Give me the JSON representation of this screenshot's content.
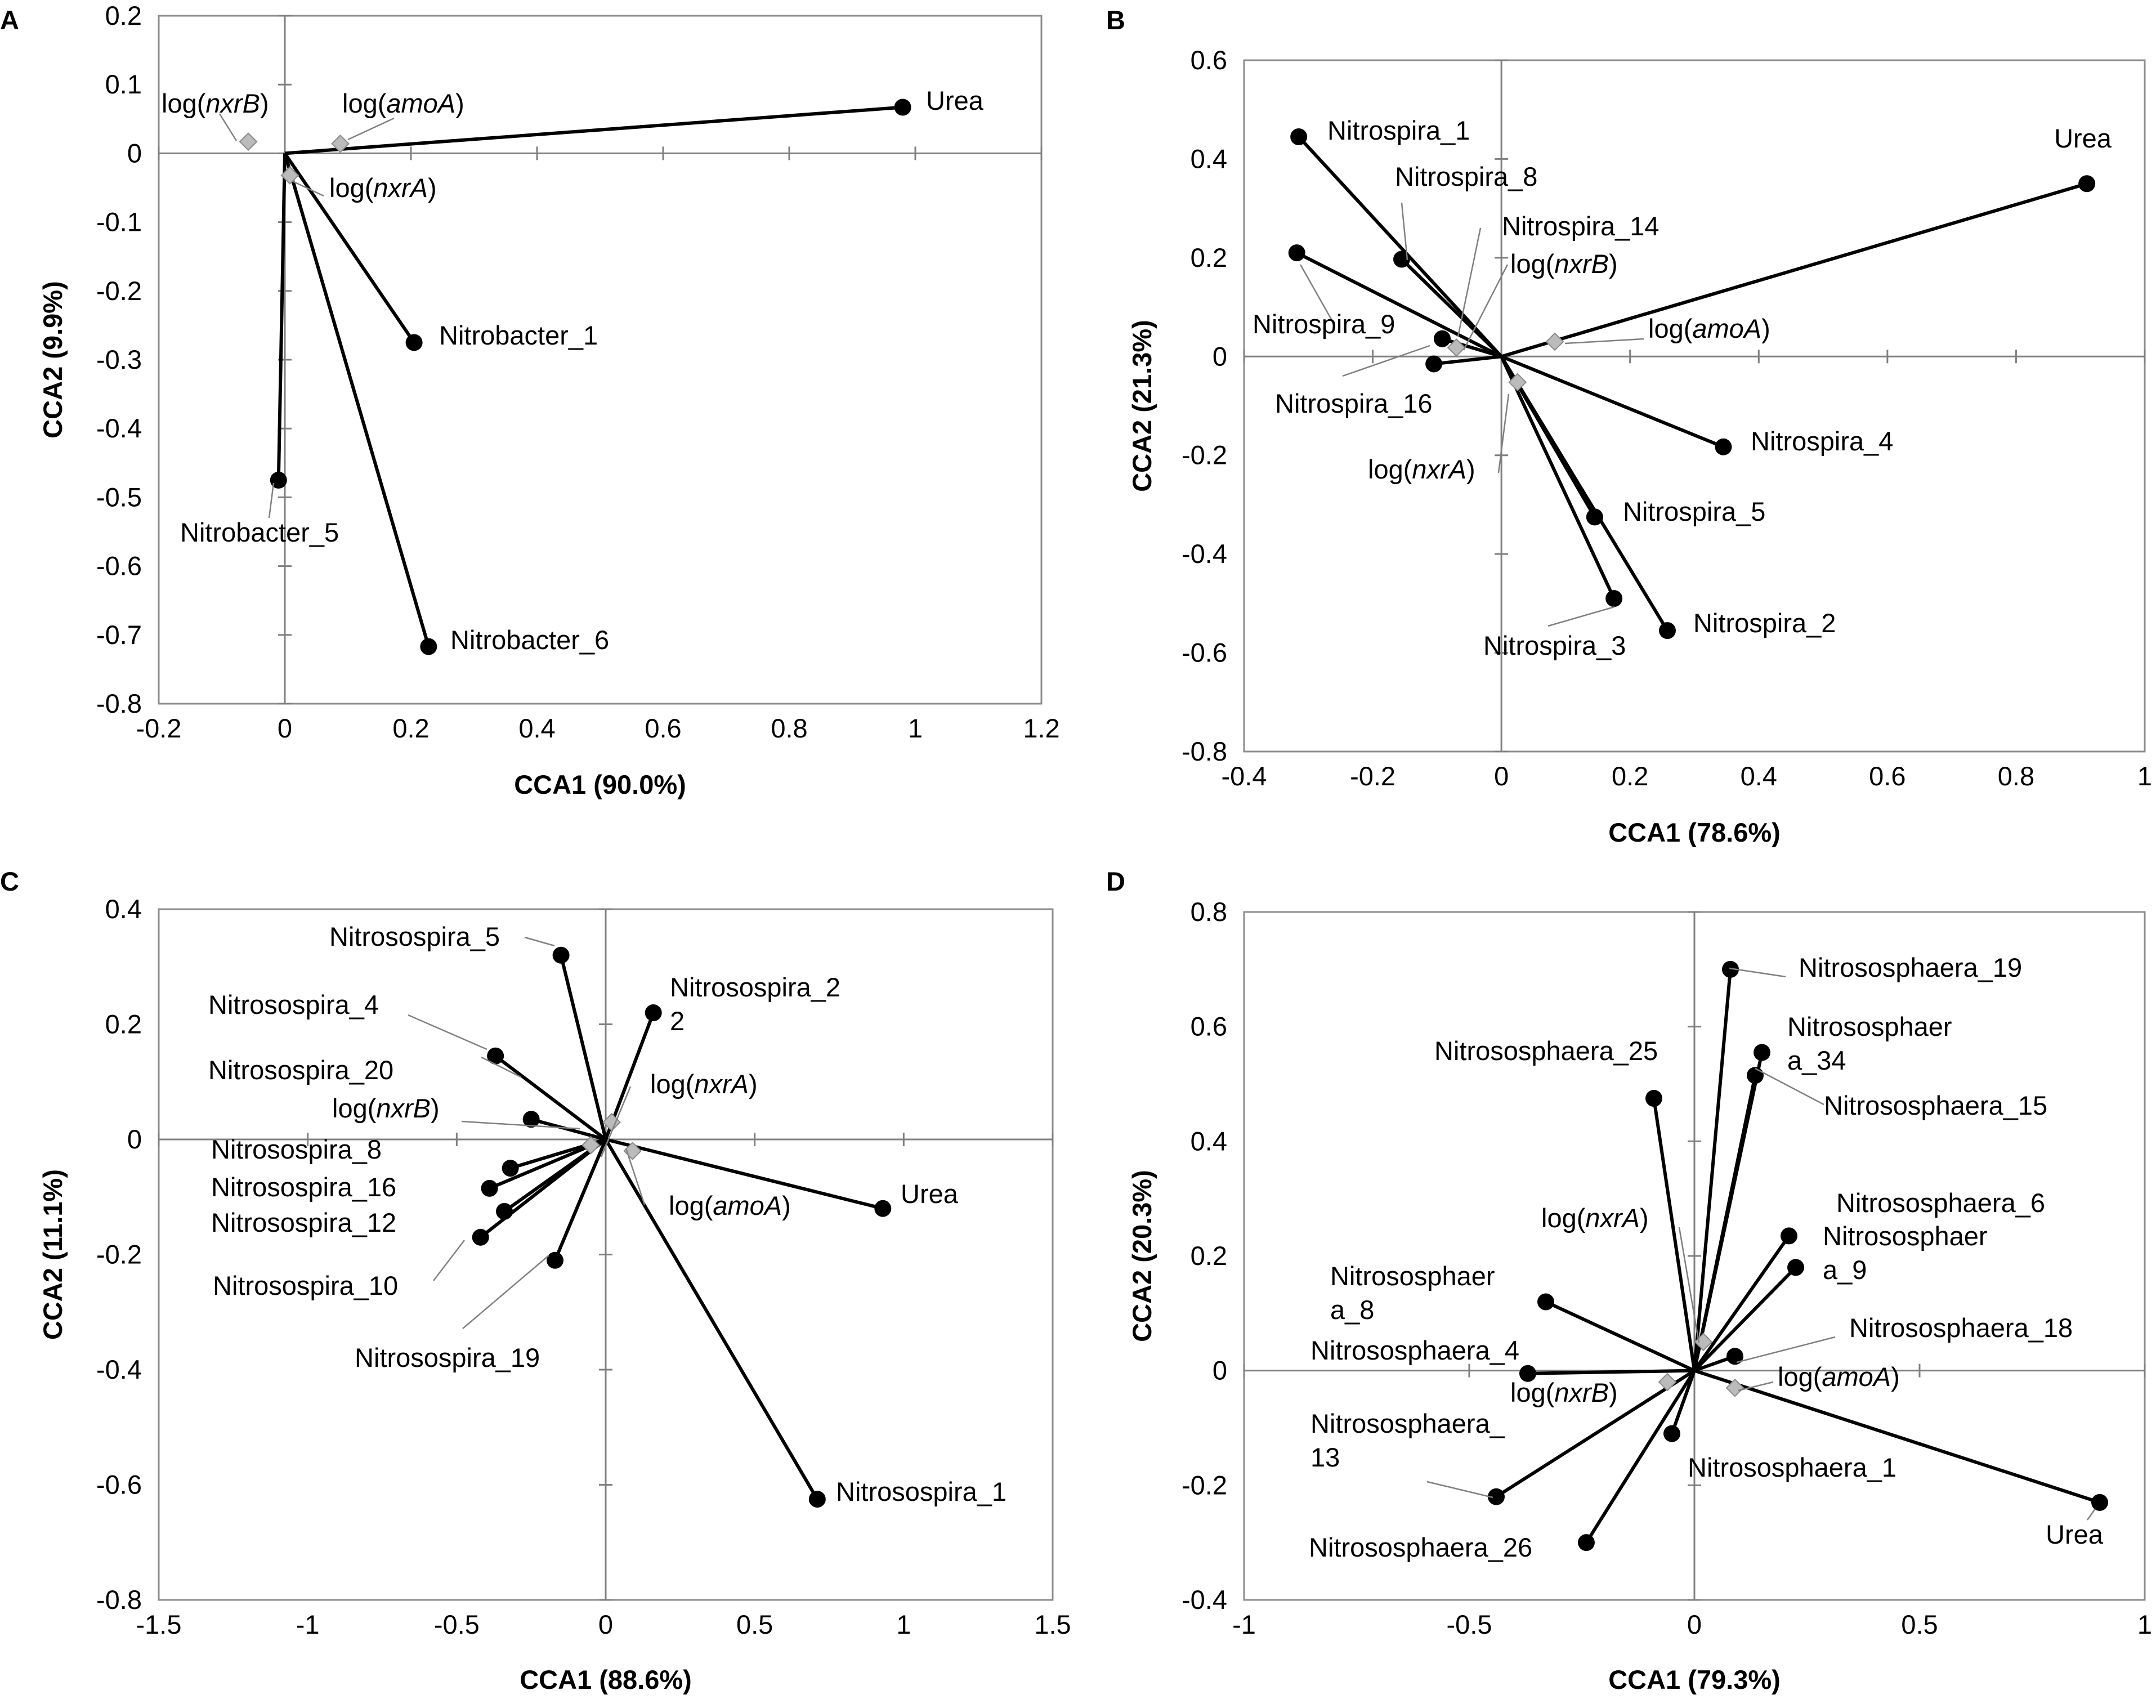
{
  "figure": {
    "type": "multi-panel CCA ordination plots"
  },
  "colors": {
    "species": "#000000",
    "env_marker": "#bbbbbb",
    "env_marker_stroke": "#8a8a8a",
    "axis": "#7f7f7f",
    "leader": "#7f7f7f",
    "frame": "#8c8c8c"
  },
  "chart_data": [
    {
      "type": "scatter",
      "panel_label": "A",
      "title": "",
      "xlabel": "CCA1 (90.0%)",
      "ylabel": "CCA2 (9.9%)",
      "xlim": [
        -0.2,
        1.2
      ],
      "ylim": [
        -0.8,
        0.2
      ],
      "xticks": [
        -0.2,
        0,
        0.2,
        0.4,
        0.6,
        0.8,
        1,
        1.2
      ],
      "yticks": [
        -0.8,
        -0.7,
        -0.6,
        -0.5,
        -0.4,
        -0.3,
        -0.2,
        -0.1,
        0,
        0.1,
        0.2
      ],
      "xtick_labels": [
        "-0.2",
        "0",
        "0.2",
        "0.4",
        "0.6",
        "0.8",
        "1",
        "1.2"
      ],
      "ytick_labels": [
        "-0.8",
        "-0.7",
        "-0.6",
        "-0.5",
        "-0.4",
        "-0.3",
        "-0.2",
        "-0.1",
        "0",
        "0.1",
        "0.2"
      ],
      "series": [
        {
          "name": "Urea",
          "kind": "species",
          "x": 0.98,
          "y": 0.067
        },
        {
          "name": "Nitrobacter_1",
          "kind": "species",
          "x": 0.205,
          "y": -0.275
        },
        {
          "name": "Nitrobacter_5",
          "kind": "species",
          "x": -0.01,
          "y": -0.475
        },
        {
          "name": "Nitrobacter_6",
          "kind": "species",
          "x": 0.228,
          "y": -0.717
        },
        {
          "name": "log(nxrB)",
          "kind": "env",
          "x": -0.058,
          "y": 0.017
        },
        {
          "name": "log(amoA)",
          "kind": "env",
          "x": 0.088,
          "y": 0.014
        },
        {
          "name": "log(nxrA)",
          "kind": "env",
          "x": 0.008,
          "y": -0.032
        }
      ]
    },
    {
      "type": "scatter",
      "panel_label": "B",
      "title": "",
      "xlabel": "CCA1 (78.6%)",
      "ylabel": "CCA2 (21.3%)",
      "xlim": [
        -0.4,
        1
      ],
      "ylim": [
        -0.8,
        0.6
      ],
      "xticks": [
        -0.4,
        -0.2,
        0,
        0.2,
        0.4,
        0.6,
        0.8,
        1
      ],
      "yticks": [
        -0.8,
        -0.6,
        -0.4,
        -0.2,
        0,
        0.2,
        0.4,
        0.6
      ],
      "xtick_labels": [
        "-0.4",
        "-0.2",
        "0",
        "0.2",
        "0.4",
        "0.6",
        "0.8",
        "1"
      ],
      "ytick_labels": [
        "-0.8",
        "-0.6",
        "-0.4",
        "-0.2",
        "0",
        "0.2",
        "0.4",
        "0.6"
      ],
      "series": [
        {
          "name": "Urea",
          "kind": "species",
          "x": 0.91,
          "y": 0.35
        },
        {
          "name": "Nitrospira_1",
          "kind": "species",
          "x": -0.315,
          "y": 0.445
        },
        {
          "name": "Nitrospira_8",
          "kind": "species",
          "x": -0.155,
          "y": 0.197
        },
        {
          "name": "Nitrospira_14",
          "kind": "species",
          "x": -0.092,
          "y": 0.036
        },
        {
          "name": "Nitrospira_9",
          "kind": "species",
          "x": -0.318,
          "y": 0.21
        },
        {
          "name": "Nitrospira_16",
          "kind": "species",
          "x": -0.105,
          "y": -0.015
        },
        {
          "name": "Nitrospira_4",
          "kind": "species",
          "x": 0.345,
          "y": -0.183
        },
        {
          "name": "Nitrospira_5",
          "kind": "species",
          "x": 0.145,
          "y": -0.325
        },
        {
          "name": "Nitrospira_3",
          "kind": "species",
          "x": 0.175,
          "y": -0.49
        },
        {
          "name": "Nitrospira_2",
          "kind": "species",
          "x": 0.258,
          "y": -0.555
        },
        {
          "name": "log(nxrB)",
          "kind": "env",
          "x": -0.07,
          "y": 0.018
        },
        {
          "name": "log(amoA)",
          "kind": "env",
          "x": 0.083,
          "y": 0.03
        },
        {
          "name": "log(nxrA)",
          "kind": "env",
          "x": 0.025,
          "y": -0.052
        }
      ]
    },
    {
      "type": "scatter",
      "panel_label": "C",
      "title": "",
      "xlabel": "CCA1 (88.6%)",
      "ylabel": "CCA2 (11.1%)",
      "xlim": [
        -1.5,
        1.5
      ],
      "ylim": [
        -0.8,
        0.4
      ],
      "xticks": [
        -1.5,
        -1,
        -0.5,
        0,
        0.5,
        1,
        1.5
      ],
      "yticks": [
        -0.8,
        -0.6,
        -0.4,
        -0.2,
        0,
        0.2,
        0.4
      ],
      "xtick_labels": [
        "-1.5",
        "-1",
        "-0.5",
        "0",
        "0.5",
        "1",
        "1.5"
      ],
      "ytick_labels": [
        "-0.8",
        "-0.6",
        "-0.4",
        "-0.2",
        "0",
        "0.2",
        "0.4"
      ],
      "series": [
        {
          "name": "Nitrosospira_5",
          "kind": "species",
          "x": -0.15,
          "y": 0.32
        },
        {
          "name": "Nitrosospira_22",
          "kind": "species",
          "x": 0.16,
          "y": 0.22
        },
        {
          "name": "Nitrosospira_4",
          "kind": "species",
          "x": -0.37,
          "y": 0.145
        },
        {
          "name": "Nitrosospira_20",
          "kind": "species",
          "x": -0.25,
          "y": 0.035
        },
        {
          "name": "Nitrosospira_8",
          "kind": "species",
          "x": -0.32,
          "y": -0.05
        },
        {
          "name": "Nitrosospira_16",
          "kind": "species",
          "x": -0.39,
          "y": -0.085
        },
        {
          "name": "Nitrosospira_12",
          "kind": "species",
          "x": -0.34,
          "y": -0.125
        },
        {
          "name": "Nitrosospira_10",
          "kind": "species",
          "x": -0.42,
          "y": -0.17
        },
        {
          "name": "Nitrosospira_19",
          "kind": "species",
          "x": -0.17,
          "y": -0.21
        },
        {
          "name": "Urea",
          "kind": "species",
          "x": 0.93,
          "y": -0.12
        },
        {
          "name": "Nitrosospira_1",
          "kind": "species",
          "x": 0.71,
          "y": -0.625
        },
        {
          "name": "log(nxrA)",
          "kind": "env",
          "x": 0.02,
          "y": 0.03
        },
        {
          "name": "log(nxrB)",
          "kind": "env",
          "x": -0.05,
          "y": -0.01
        },
        {
          "name": "log(amoA)",
          "kind": "env",
          "x": 0.09,
          "y": -0.02
        }
      ]
    },
    {
      "type": "scatter",
      "panel_label": "D",
      "title": "",
      "xlabel": "CCA1 (79.3%)",
      "ylabel": "CCA2 (20.3%)",
      "xlim": [
        -1,
        1
      ],
      "ylim": [
        -0.4,
        0.8
      ],
      "xticks": [
        -1,
        -0.5,
        0,
        0.5,
        1
      ],
      "yticks": [
        -0.4,
        -0.2,
        0,
        0.2,
        0.4,
        0.6,
        0.8
      ],
      "xtick_labels": [
        "-1",
        "-0.5",
        "0",
        "0.5",
        "1"
      ],
      "ytick_labels": [
        "-0.4",
        "-0.2",
        "0",
        "0.2",
        "0.4",
        "0.6",
        "0.8"
      ],
      "series": [
        {
          "name": "Nitrososphaera_19",
          "kind": "species",
          "x": 0.08,
          "y": 0.7
        },
        {
          "name": "Nitrososphaera_34",
          "kind": "species",
          "x": 0.15,
          "y": 0.555
        },
        {
          "name": "Nitrososphaera_15",
          "kind": "species",
          "x": 0.135,
          "y": 0.515
        },
        {
          "name": "Nitrososphaera_25",
          "kind": "species",
          "x": -0.09,
          "y": 0.475
        },
        {
          "name": "Nitrososphaera_6",
          "kind": "species",
          "x": 0.21,
          "y": 0.235
        },
        {
          "name": "Nitrososphaera_9",
          "kind": "species",
          "x": 0.225,
          "y": 0.18
        },
        {
          "name": "Nitrososphaera_8",
          "kind": "species",
          "x": -0.33,
          "y": 0.12
        },
        {
          "name": "Nitrososphaera_18",
          "kind": "species",
          "x": 0.09,
          "y": 0.025
        },
        {
          "name": "Nitrososphaera_4",
          "kind": "species",
          "x": -0.37,
          "y": -0.005
        },
        {
          "name": "Nitrososphaera_1",
          "kind": "species",
          "x": -0.05,
          "y": -0.11
        },
        {
          "name": "Nitrososphaera_13",
          "kind": "species",
          "x": -0.44,
          "y": -0.22
        },
        {
          "name": "Nitrososphaera_26",
          "kind": "species",
          "x": -0.24,
          "y": -0.3
        },
        {
          "name": "Urea",
          "kind": "species",
          "x": 0.9,
          "y": -0.23
        },
        {
          "name": "log(nxrA)",
          "kind": "env",
          "x": 0.02,
          "y": 0.05
        },
        {
          "name": "log(nxrB)",
          "kind": "env",
          "x": -0.06,
          "y": -0.02
        },
        {
          "name": "log(amoA)",
          "kind": "env",
          "x": 0.09,
          "y": -0.03
        }
      ]
    }
  ],
  "annotations": [
    {
      "panel": 0,
      "items": [
        {
          "series": 0,
          "lines": [
            "Urea"
          ]
        },
        {
          "series": 1,
          "lines": [
            "Nitrobacter_1"
          ]
        },
        {
          "series": 2,
          "lines": [
            "Nitrobacter_5"
          ]
        },
        {
          "series": 3,
          "lines": [
            "Nitrobacter_6"
          ]
        },
        {
          "series": 4,
          "lines": [
            "log(|nxrB|)"
          ]
        },
        {
          "series": 5,
          "lines": [
            "log(|amoA|)"
          ]
        },
        {
          "series": 6,
          "lines": [
            "log(|nxrA|)"
          ]
        }
      ]
    },
    {
      "panel": 1,
      "items": [
        {
          "series": 0,
          "lines": [
            "Urea"
          ]
        },
        {
          "series": 1,
          "lines": [
            "Nitrospira_1"
          ]
        },
        {
          "series": 2,
          "lines": [
            "Nitrospira_8"
          ]
        },
        {
          "series": 3,
          "lines": [
            "Nitrospira_14"
          ]
        },
        {
          "series": 4,
          "lines": [
            "Nitrospira_9"
          ]
        },
        {
          "series": 5,
          "lines": [
            "Nitrospira_16"
          ]
        },
        {
          "series": 6,
          "lines": [
            "Nitrospira_4"
          ]
        },
        {
          "series": 7,
          "lines": [
            "Nitrospira_5"
          ]
        },
        {
          "series": 8,
          "lines": [
            "Nitrospira_3"
          ]
        },
        {
          "series": 9,
          "lines": [
            "Nitrospira_2"
          ]
        },
        {
          "series": 10,
          "lines": [
            "log(|nxrB|)"
          ]
        },
        {
          "series": 11,
          "lines": [
            "log(|amoA|)"
          ]
        },
        {
          "series": 12,
          "lines": [
            "log(|nxrA|)"
          ]
        }
      ]
    },
    {
      "panel": 2,
      "items": [
        {
          "series": 0,
          "lines": [
            "Nitrosospira_5"
          ]
        },
        {
          "series": 1,
          "lines": [
            "Nitrosospira_2",
            "2"
          ]
        },
        {
          "series": 2,
          "lines": [
            "Nitrosospira_4"
          ]
        },
        {
          "series": 3,
          "lines": [
            "Nitrosospira_20"
          ]
        },
        {
          "series": 4,
          "lines": [
            "Nitrosospira_8"
          ]
        },
        {
          "series": 5,
          "lines": [
            "Nitrosospira_16"
          ]
        },
        {
          "series": 6,
          "lines": [
            "Nitrosospira_12"
          ]
        },
        {
          "series": 7,
          "lines": [
            "Nitrosospira_10"
          ]
        },
        {
          "series": 8,
          "lines": [
            "Nitrosospira_19"
          ]
        },
        {
          "series": 9,
          "lines": [
            "Urea"
          ]
        },
        {
          "series": 10,
          "lines": [
            "Nitrosospira_1"
          ]
        },
        {
          "series": 11,
          "lines": [
            "log(|nxrA|)"
          ]
        },
        {
          "series": 12,
          "lines": [
            "log(|nxrB|)"
          ]
        },
        {
          "series": 13,
          "lines": [
            "log(|amoA|)"
          ]
        }
      ]
    },
    {
      "panel": 3,
      "items": [
        {
          "series": 0,
          "lines": [
            "Nitrososphaera_19"
          ]
        },
        {
          "series": 1,
          "lines": [
            "Nitrososphaer",
            "a_34"
          ]
        },
        {
          "series": 2,
          "lines": [
            "Nitrososphaera_15"
          ]
        },
        {
          "series": 3,
          "lines": [
            "Nitrososphaera_25"
          ]
        },
        {
          "series": 4,
          "lines": [
            "Nitrososphaera_6"
          ]
        },
        {
          "series": 5,
          "lines": [
            "Nitrososphaer",
            "a_9"
          ]
        },
        {
          "series": 6,
          "lines": [
            "Nitrososphaer",
            "a_8"
          ]
        },
        {
          "series": 7,
          "lines": [
            "Nitrososphaera_18"
          ]
        },
        {
          "series": 8,
          "lines": [
            "Nitrososphaera_4"
          ]
        },
        {
          "series": 9,
          "lines": [
            "Nitrososphaera_1"
          ]
        },
        {
          "series": 10,
          "lines": [
            "Nitrososphaera_",
            "13"
          ]
        },
        {
          "series": 11,
          "lines": [
            "Nitrososphaera_26"
          ]
        },
        {
          "series": 12,
          "lines": [
            "Urea"
          ]
        },
        {
          "series": 13,
          "lines": [
            "log(|nxrA|)"
          ]
        },
        {
          "series": 14,
          "lines": [
            "log(|nxrB|)"
          ]
        },
        {
          "series": 15,
          "lines": [
            "log(|amoA|)"
          ]
        }
      ]
    }
  ]
}
